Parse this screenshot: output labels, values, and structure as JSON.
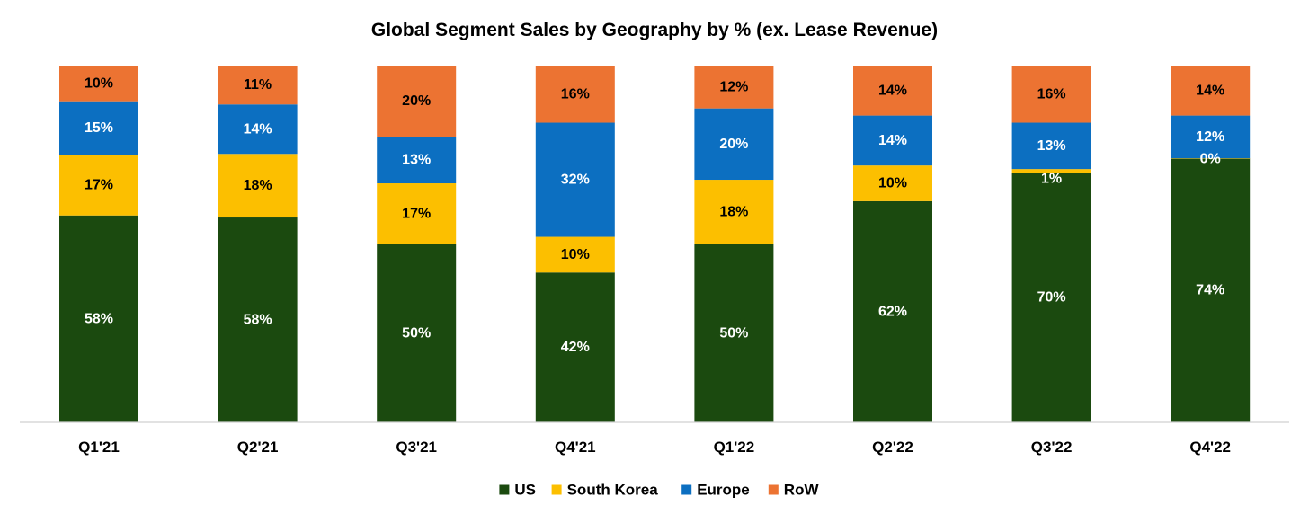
{
  "chart_data": {
    "type": "bar",
    "stacked": "percent",
    "title": "Global Segment Sales by Geography by % (ex. Lease Revenue)",
    "xlabel": "",
    "ylabel": "",
    "ylim": [
      0,
      100
    ],
    "categories": [
      "Q1'21",
      "Q2'21",
      "Q3'21",
      "Q4'21",
      "Q1'22",
      "Q2'22",
      "Q3'22",
      "Q4'22"
    ],
    "series": [
      {
        "name": "US",
        "color": "#1b4a0f",
        "label_color": "#ffffff",
        "values": [
          58,
          58,
          50,
          42,
          50,
          62,
          70,
          74
        ]
      },
      {
        "name": "South Korea",
        "color": "#fcbf00",
        "label_color": "#000000",
        "values": [
          17,
          18,
          17,
          10,
          18,
          10,
          1,
          0
        ]
      },
      {
        "name": "Europe",
        "color": "#0c6fc1",
        "label_color": "#ffffff",
        "values": [
          15,
          14,
          13,
          32,
          20,
          14,
          13,
          12
        ]
      },
      {
        "name": "RoW",
        "color": "#ec7332",
        "label_color": "#000000",
        "values": [
          10,
          11,
          20,
          16,
          12,
          14,
          16,
          14
        ]
      }
    ],
    "data_labels": [
      [
        "58%",
        "58%",
        "50%",
        "42%",
        "50%",
        "62%",
        "70%",
        "74%"
      ],
      [
        "17%",
        "18%",
        "17%",
        "10%",
        "18%",
        "10%",
        "1%",
        "0%"
      ],
      [
        "15%",
        "14%",
        "13%",
        "32%",
        "20%",
        "14%",
        "13%",
        "12%"
      ],
      [
        "10%",
        "11%",
        "20%",
        "16%",
        "12%",
        "14%",
        "16%",
        "14%"
      ]
    ],
    "legend_position": "bottom",
    "grid": false
  }
}
